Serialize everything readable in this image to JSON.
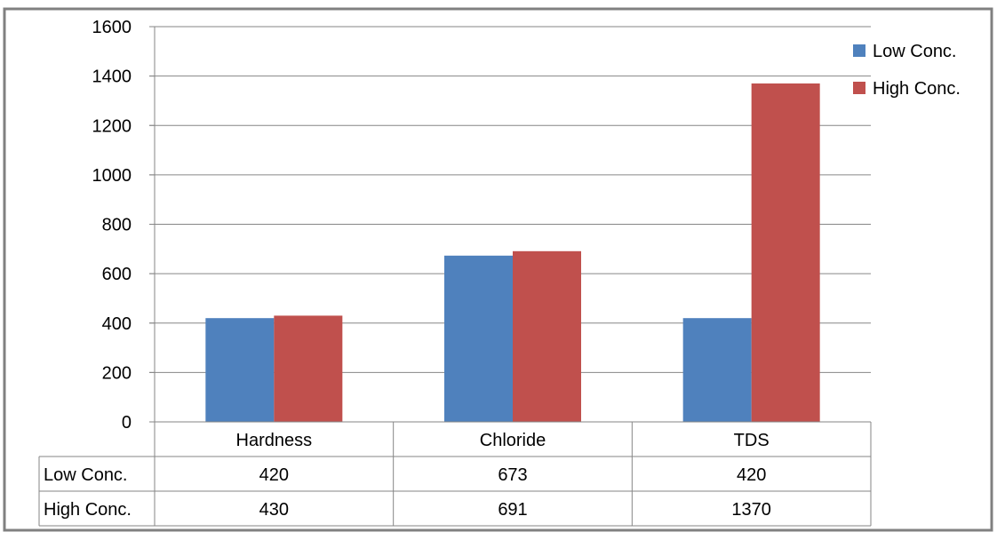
{
  "chart_data": {
    "type": "bar",
    "categories": [
      "Hardness",
      "Chloride",
      "TDS"
    ],
    "series": [
      {
        "name": "Low Conc.",
        "values": [
          420,
          673,
          420
        ],
        "color": "#4F81BD"
      },
      {
        "name": "High Conc.",
        "values": [
          430,
          691,
          1370
        ],
        "color": "#C0504D"
      }
    ],
    "yticks": [
      "0",
      "200",
      "400",
      "600",
      "800",
      "1000",
      "1200",
      "1400",
      "1600"
    ],
    "ylim": [
      0,
      1600
    ],
    "grid": true,
    "legend": "right",
    "data_table": {
      "rows": [
        {
          "label": "Low Conc.",
          "cells": [
            "420",
            "673",
            "420"
          ]
        },
        {
          "label": "High Conc.",
          "cells": [
            "430",
            "691",
            "1370"
          ]
        }
      ]
    }
  }
}
